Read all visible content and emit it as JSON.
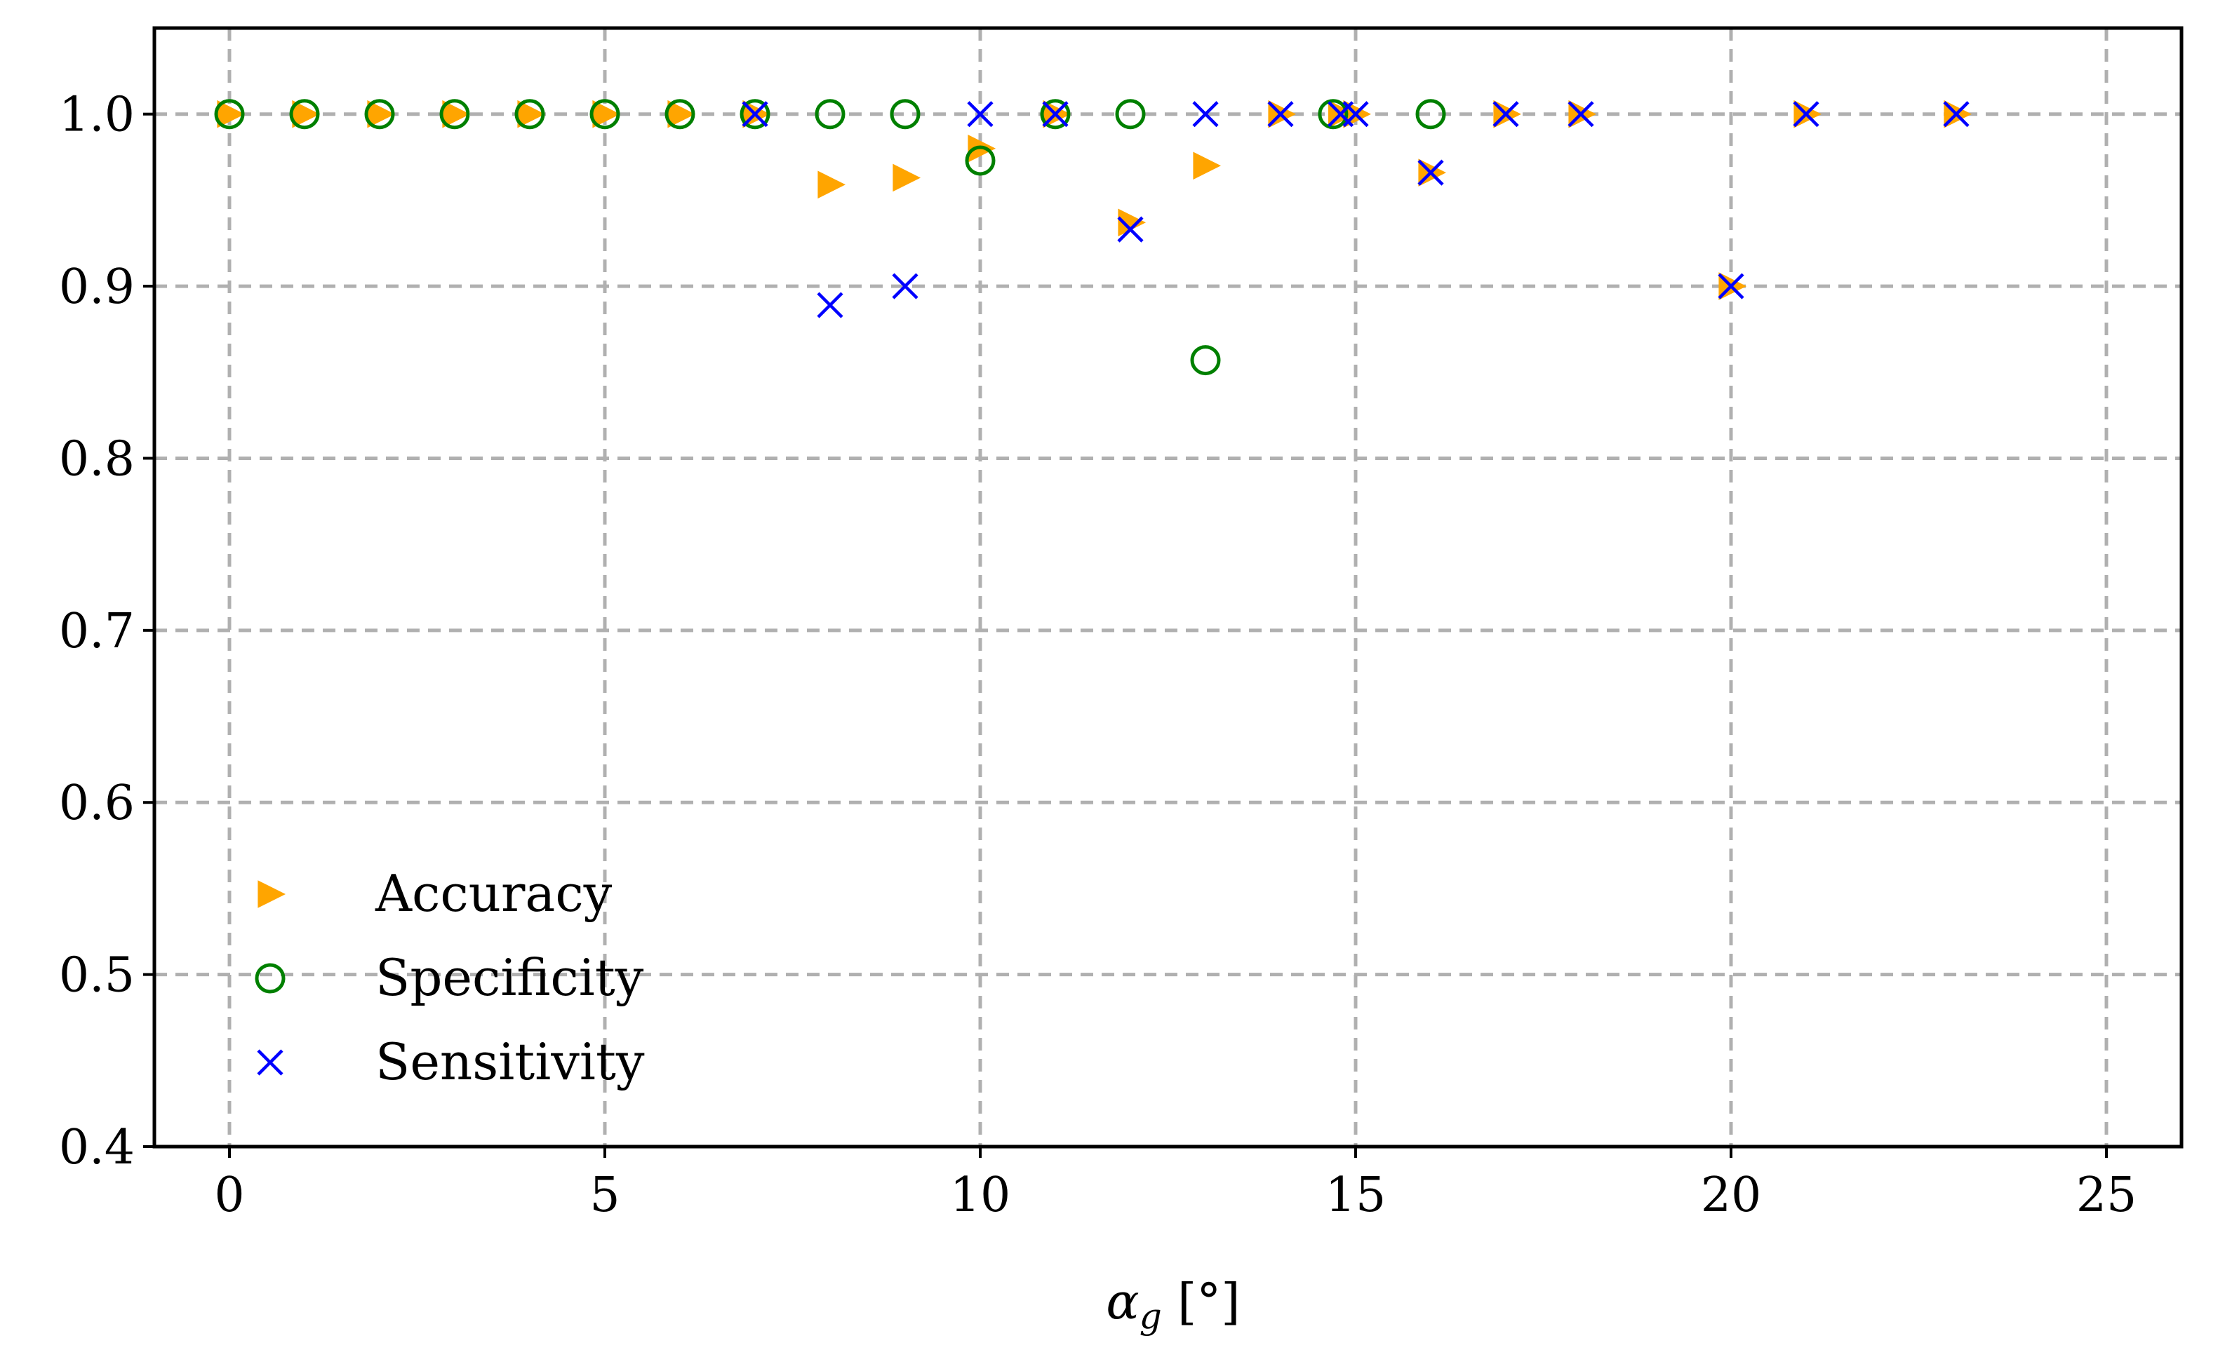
{
  "chart_data": {
    "type": "scatter",
    "title": "",
    "xlabel": "α_g [°]",
    "xlabel_main": "α",
    "xlabel_sub": "g",
    "xlabel_unit": " [°]",
    "ylabel": "",
    "xlim": [
      -1,
      26
    ],
    "ylim": [
      0.4,
      1.05
    ],
    "xticks": [
      0,
      5,
      10,
      15,
      20,
      25
    ],
    "yticks": [
      0.4,
      0.5,
      0.6,
      0.7,
      0.8,
      0.9,
      1.0
    ],
    "xtick_labels": [
      "0",
      "5",
      "10",
      "15",
      "20",
      "25"
    ],
    "ytick_labels": [
      "0.4",
      "0.5",
      "0.6",
      "0.7",
      "0.8",
      "0.9",
      "1.0"
    ],
    "grid": true,
    "legend_position": "lower-left",
    "series": [
      {
        "name": "Accuracy",
        "marker": "triangle-right",
        "color": "#FFA500",
        "x": [
          0,
          1,
          2,
          3,
          4,
          5,
          6,
          7,
          8,
          9,
          10,
          11,
          12,
          13,
          14,
          14.8,
          15,
          16,
          17,
          18,
          20,
          21,
          23
        ],
        "y": [
          1.0,
          1.0,
          1.0,
          1.0,
          1.0,
          1.0,
          1.0,
          1.0,
          0.959,
          0.963,
          0.98,
          1.0,
          0.937,
          0.97,
          1.0,
          1.0,
          1.0,
          0.966,
          1.0,
          1.0,
          0.9,
          1.0,
          1.0
        ]
      },
      {
        "name": "Specificity",
        "marker": "circle-open",
        "color": "#008000",
        "x": [
          0,
          1,
          2,
          3,
          4,
          5,
          6,
          7,
          8,
          9,
          10,
          11,
          12,
          13,
          14.7,
          16
        ],
        "y": [
          1.0,
          1.0,
          1.0,
          1.0,
          1.0,
          1.0,
          1.0,
          1.0,
          1.0,
          1.0,
          0.973,
          1.0,
          1.0,
          0.857,
          1.0,
          1.0
        ]
      },
      {
        "name": "Sensitivity",
        "marker": "x",
        "color": "#0000FF",
        "x": [
          7,
          8,
          9,
          10,
          11,
          12,
          13,
          14,
          14.8,
          15,
          16,
          17,
          18,
          20,
          21,
          23
        ],
        "y": [
          1.0,
          0.889,
          0.9,
          1.0,
          1.0,
          0.933,
          1.0,
          1.0,
          1.0,
          1.0,
          0.966,
          1.0,
          1.0,
          0.9,
          1.0,
          1.0
        ]
      }
    ]
  }
}
